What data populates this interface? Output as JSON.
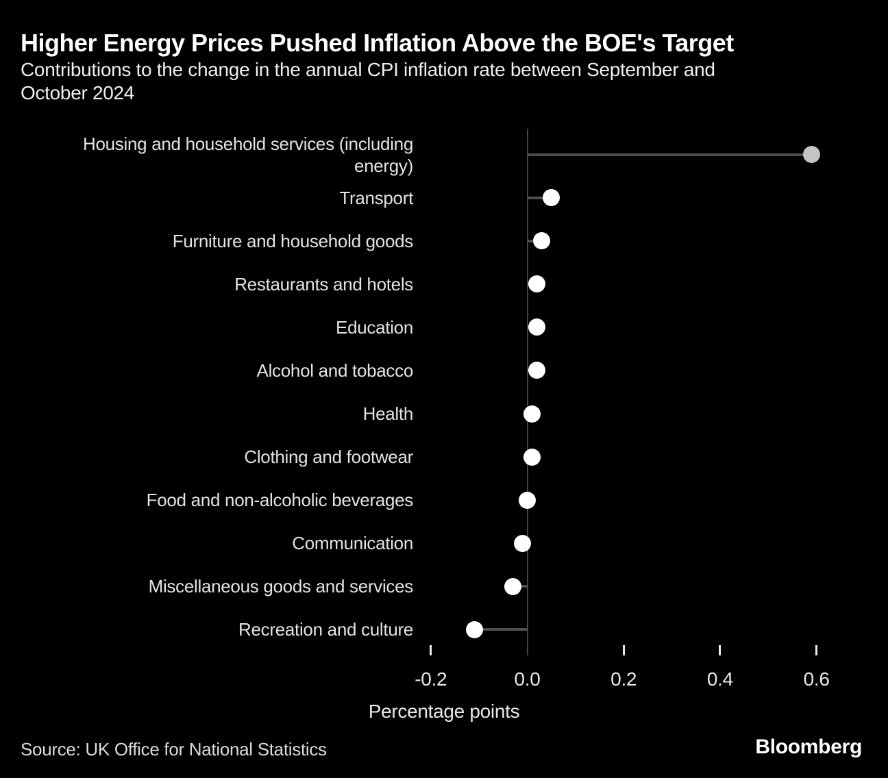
{
  "chart_data": {
    "type": "scatter",
    "variant": "lollipop-horizontal",
    "title": "Higher Energy Prices Pushed Inflation Above the BOE's Target",
    "subtitle": "Contributions to the change in the annual CPI inflation rate between September and\nOctober 2024",
    "categories": [
      "Housing and household services (including\nenergy)",
      "Transport",
      "Furniture and household goods",
      "Restaurants and hotels",
      "Education",
      "Alcohol and tobacco",
      "Health",
      "Clothing and footwear",
      "Food and non-alcoholic beverages",
      "Communication",
      "Miscellaneous goods and services",
      "Recreation and culture"
    ],
    "values": [
      0.59,
      0.05,
      0.03,
      0.02,
      0.02,
      0.02,
      0.01,
      0.01,
      0.0,
      -0.01,
      -0.03,
      -0.11
    ],
    "xlabel": "Percentage points",
    "xticks": {
      "values": [
        -0.2,
        0.0,
        0.2,
        0.4,
        0.6
      ],
      "labels": [
        "-0.2",
        "0.0",
        "0.2",
        "0.4",
        "0.6"
      ]
    },
    "xlim": [
      -0.32,
      0.75
    ],
    "grid": false,
    "legend": "none",
    "highlight_index": 0,
    "colors": {
      "background": "#000000",
      "dot": "#ffffff",
      "highlight_dot": "#c4c4c4",
      "stem": "#4f4f4f",
      "axis": "#454545",
      "tick": "#ececec",
      "text": "#e3e3e3"
    }
  },
  "footer": {
    "source": "Source: UK Office for National Statistics",
    "brand": "Bloomberg"
  }
}
